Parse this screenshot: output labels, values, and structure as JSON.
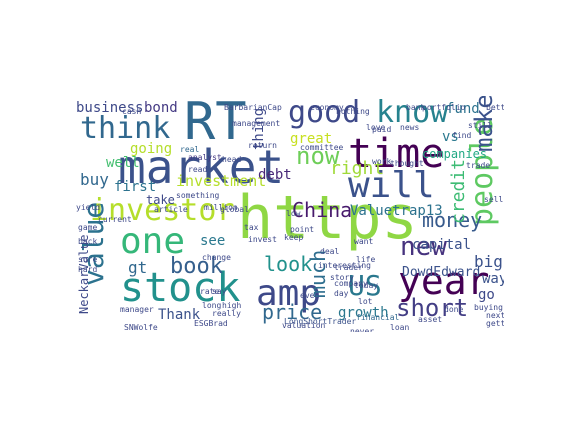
{
  "words": [
    {
      "text": "https",
      "color": "#8fd744"
    },
    {
      "text": "market",
      "color": "#3b528b"
    },
    {
      "text": "RT",
      "color": "#31688e"
    },
    {
      "text": "stock",
      "color": "#21918c"
    },
    {
      "text": "time",
      "color": "#440154"
    },
    {
      "text": "year",
      "color": "#440154"
    },
    {
      "text": "investor",
      "color": "#b5de2b"
    },
    {
      "text": "good",
      "color": "#3e4989"
    },
    {
      "text": "know",
      "color": "#26828e"
    },
    {
      "text": "think",
      "color": "#31688e"
    },
    {
      "text": "will",
      "color": "#3b528b"
    },
    {
      "text": "one",
      "color": "#35b779"
    },
    {
      "text": "amp",
      "color": "#3e4989"
    },
    {
      "text": "US",
      "color": "#2a788e"
    },
    {
      "text": "people",
      "color": "#5ec962"
    },
    {
      "text": "value",
      "color": "#2c728e"
    },
    {
      "text": "now",
      "color": "#6ece58"
    },
    {
      "text": "new",
      "color": "#46327e"
    },
    {
      "text": "make",
      "color": "#3b528b"
    },
    {
      "text": "short",
      "color": "#433e85"
    },
    {
      "text": "money",
      "color": "#375a8c"
    },
    {
      "text": "China",
      "color": "#481a6c"
    },
    {
      "text": "book",
      "color": "#355f8d"
    },
    {
      "text": "price",
      "color": "#31688e"
    },
    {
      "text": "look",
      "color": "#21918c"
    },
    {
      "text": "right",
      "color": "#a0da39"
    },
    {
      "text": "much",
      "color": "#2e6e8e"
    },
    {
      "text": "credit",
      "color": "#3dbc74"
    },
    {
      "text": "Valuetrap13",
      "color": "#2c728e"
    },
    {
      "text": "DowdEdward",
      "color": "#3b528b"
    },
    {
      "text": "capital",
      "color": "#3b528b"
    },
    {
      "text": "big",
      "color": "#3b528b"
    },
    {
      "text": "going",
      "color": "#b5de2b"
    },
    {
      "text": "investment",
      "color": "#b5de2b"
    },
    {
      "text": "business",
      "color": "#3e4989"
    },
    {
      "text": "bond",
      "color": "#443983"
    },
    {
      "text": "fund",
      "color": "#2c728e"
    },
    {
      "text": "vs",
      "color": "#2a788e"
    },
    {
      "text": "companies",
      "color": "#22a884"
    },
    {
      "text": "well",
      "color": "#44bf70"
    },
    {
      "text": "buy",
      "color": "#31688e"
    },
    {
      "text": "first",
      "color": "#2c728e"
    },
    {
      "text": "thing",
      "color": "#3e4989"
    },
    {
      "text": "debt",
      "color": "#482878"
    },
    {
      "text": "great",
      "color": "#c8e020"
    },
    {
      "text": "NeckarValue",
      "color": "#3e4989"
    },
    {
      "text": "growth",
      "color": "#2a788e"
    },
    {
      "text": "Thank",
      "color": "#3b528b"
    },
    {
      "text": "gt",
      "color": "#31688e"
    },
    {
      "text": "see",
      "color": "#2a788e"
    },
    {
      "text": "take",
      "color": "#3e4989"
    },
    {
      "text": "way",
      "color": "#3b528b"
    },
    {
      "text": "go",
      "color": "#3e4989"
    },
    {
      "text": "want",
      "color": "#3e4989"
    },
    {
      "text": "BarbarianCap",
      "color": "#3e4989"
    },
    {
      "text": "analyst",
      "color": "#443983"
    },
    {
      "text": "real",
      "color": "#31688e"
    },
    {
      "text": "portfolio",
      "color": "#3e4989"
    },
    {
      "text": "financial",
      "color": "#31688e"
    },
    {
      "text": "interesting",
      "color": "#3e4989"
    },
    {
      "text": "LongShortTrader",
      "color": "#3b528b"
    },
    {
      "text": "million",
      "color": "#3e4989"
    },
    {
      "text": "high",
      "color": "#3e4989"
    },
    {
      "text": "global",
      "color": "#3e4989"
    },
    {
      "text": "change",
      "color": "#3e4989"
    },
    {
      "text": "bank",
      "color": "#3e4989"
    },
    {
      "text": "better",
      "color": "#3e4989"
    },
    {
      "text": "economy",
      "color": "#3e4989"
    },
    {
      "text": "committee",
      "color": "#3e4989"
    },
    {
      "text": "management",
      "color": "#3e4989"
    },
    {
      "text": "long",
      "color": "#3e4989"
    },
    {
      "text": "rate",
      "color": "#3e4989"
    },
    {
      "text": "day",
      "color": "#3e4989"
    },
    {
      "text": "deal",
      "color": "#3e4989"
    },
    {
      "text": "yield",
      "color": "#3e4989"
    },
    {
      "text": "cash",
      "color": "#3e4989"
    },
    {
      "text": "game",
      "color": "#3e4989"
    },
    {
      "text": "back",
      "color": "#3e4989"
    },
    {
      "text": "story",
      "color": "#3e4989"
    },
    {
      "text": "read",
      "color": "#3e4989"
    },
    {
      "text": "find",
      "color": "#3e4989"
    },
    {
      "text": "sell",
      "color": "#3e4989"
    },
    {
      "text": "loan",
      "color": "#3e4989"
    },
    {
      "text": "life",
      "color": "#3e4989"
    },
    {
      "text": "point",
      "color": "#3e4989"
    },
    {
      "text": "never",
      "color": "#3e4989"
    },
    {
      "text": "thought",
      "color": "#3e4989"
    },
    {
      "text": "nothing",
      "color": "#3e4989"
    },
    {
      "text": "return",
      "color": "#3e4989"
    },
    {
      "text": "something",
      "color": "#3e4989"
    },
    {
      "text": "getting",
      "color": "#3e4989"
    },
    {
      "text": "trader",
      "color": "#3e4989"
    },
    {
      "text": "say",
      "color": "#3e4989"
    },
    {
      "text": "ESGBrad",
      "color": "#3e4989"
    },
    {
      "text": "SNWolfe",
      "color": "#3e4989"
    },
    {
      "text": "sure",
      "color": "#3e4989"
    },
    {
      "text": "today",
      "color": "#3e4989"
    },
    {
      "text": "love",
      "color": "#3e4989"
    },
    {
      "text": "asset",
      "color": "#3e4989"
    },
    {
      "text": "hard",
      "color": "#3e4989"
    },
    {
      "text": "tax",
      "color": "#3e4989"
    },
    {
      "text": "really",
      "color": "#3e4989"
    },
    {
      "text": "manager",
      "color": "#3e4989"
    },
    {
      "text": "head",
      "color": "#3e4989"
    },
    {
      "text": "next",
      "color": "#3e4989"
    },
    {
      "text": "buying",
      "color": "#3e4989"
    },
    {
      "text": "article",
      "color": "#3e4989"
    },
    {
      "text": "valuation",
      "color": "#3e4989"
    },
    {
      "text": "current",
      "color": "#3e4989"
    },
    {
      "text": "low",
      "color": "#3e4989"
    },
    {
      "text": "done",
      "color": "#3e4989"
    },
    {
      "text": "news",
      "color": "#3e4989"
    },
    {
      "text": "work",
      "color": "#3e4989"
    },
    {
      "text": "company",
      "color": "#3e4989"
    },
    {
      "text": "paid",
      "color": "#3e4989"
    },
    {
      "text": "invest",
      "color": "#3e4989"
    },
    {
      "text": "lot",
      "color": "#3e4989"
    },
    {
      "text": "keep",
      "color": "#3e4989"
    },
    {
      "text": "still",
      "color": "#3e4989"
    },
    {
      "text": "even",
      "color": "#3e4989"
    },
    {
      "text": "trade",
      "color": "#3e4989"
    }
  ]
}
